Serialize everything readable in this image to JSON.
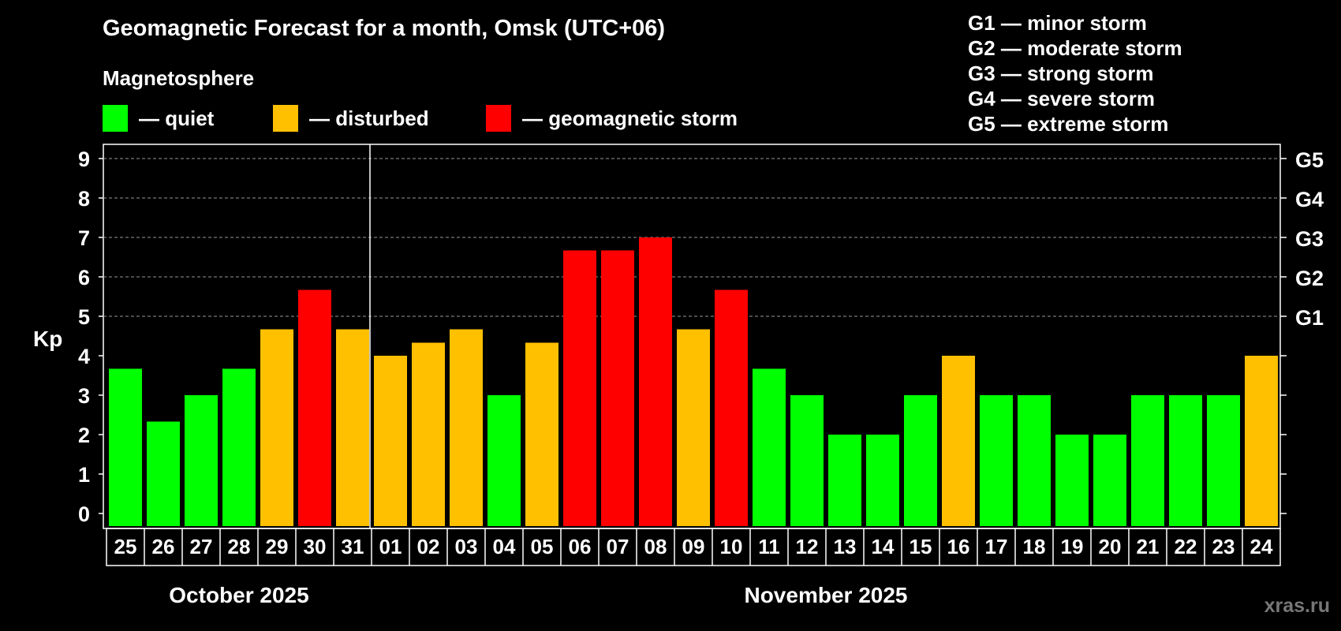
{
  "title": "Geomagnetic Forecast for a month, Omsk (UTC+06)",
  "magnetosphere": {
    "heading": "Magnetosphere",
    "legend": [
      {
        "label": "— quiet",
        "color": "#00ff00",
        "icon": "green-square"
      },
      {
        "label": "— disturbed",
        "color": "#ffc000",
        "icon": "yellow-square"
      },
      {
        "label": "— geomagnetic storm",
        "color": "#ff0000",
        "icon": "red-square"
      }
    ]
  },
  "storm_scale": [
    "G1 — minor storm",
    "G2 — moderate storm",
    "G3 — strong storm",
    "G4 — severe storm",
    "G5 — extreme storm"
  ],
  "watermark": "xras.ru",
  "chart_data": {
    "type": "bar",
    "ylabel": "Kp",
    "ylim": [
      0,
      9
    ],
    "yticks": [
      "0",
      "1",
      "2",
      "3",
      "4",
      "5",
      "6",
      "7",
      "8",
      "9"
    ],
    "right_axis_labels": [
      {
        "kp": 5,
        "label": "G1"
      },
      {
        "kp": 6,
        "label": "G2"
      },
      {
        "kp": 7,
        "label": "G3"
      },
      {
        "kp": 8,
        "label": "G4"
      },
      {
        "kp": 9,
        "label": "G5"
      }
    ],
    "grid": "dashed horizontal at Kp 5-9",
    "month_labels": [
      "October 2025",
      "November 2025"
    ],
    "categories": [
      "25",
      "26",
      "27",
      "28",
      "29",
      "30",
      "31",
      "01",
      "02",
      "03",
      "04",
      "05",
      "06",
      "07",
      "08",
      "09",
      "10",
      "11",
      "12",
      "13",
      "14",
      "15",
      "16",
      "17",
      "18",
      "19",
      "20",
      "21",
      "22",
      "23",
      "24"
    ],
    "months": [
      "October 2025",
      "October 2025",
      "October 2025",
      "October 2025",
      "October 2025",
      "October 2025",
      "October 2025",
      "November 2025",
      "November 2025",
      "November 2025",
      "November 2025",
      "November 2025",
      "November 2025",
      "November 2025",
      "November 2025",
      "November 2025",
      "November 2025",
      "November 2025",
      "November 2025",
      "November 2025",
      "November 2025",
      "November 2025",
      "November 2025",
      "November 2025",
      "November 2025",
      "November 2025",
      "November 2025",
      "November 2025",
      "November 2025",
      "November 2025",
      "November 2025"
    ],
    "values": [
      3.67,
      2.33,
      3,
      3.67,
      4.67,
      5.67,
      4.67,
      4,
      4.33,
      4.67,
      3,
      4.33,
      6.67,
      6.67,
      7,
      4.67,
      5.67,
      3.67,
      3,
      2,
      2,
      3,
      4,
      3,
      3,
      2,
      2,
      3,
      3,
      3,
      4
    ],
    "status": [
      "quiet",
      "quiet",
      "quiet",
      "quiet",
      "disturbed",
      "storm",
      "disturbed",
      "disturbed",
      "disturbed",
      "disturbed",
      "quiet",
      "disturbed",
      "storm",
      "storm",
      "storm",
      "disturbed",
      "storm",
      "quiet",
      "quiet",
      "quiet",
      "quiet",
      "quiet",
      "disturbed",
      "quiet",
      "quiet",
      "quiet",
      "quiet",
      "quiet",
      "quiet",
      "quiet",
      "disturbed"
    ],
    "status_colors": {
      "quiet": "#00ff00",
      "disturbed": "#ffc000",
      "storm": "#ff0000"
    }
  }
}
